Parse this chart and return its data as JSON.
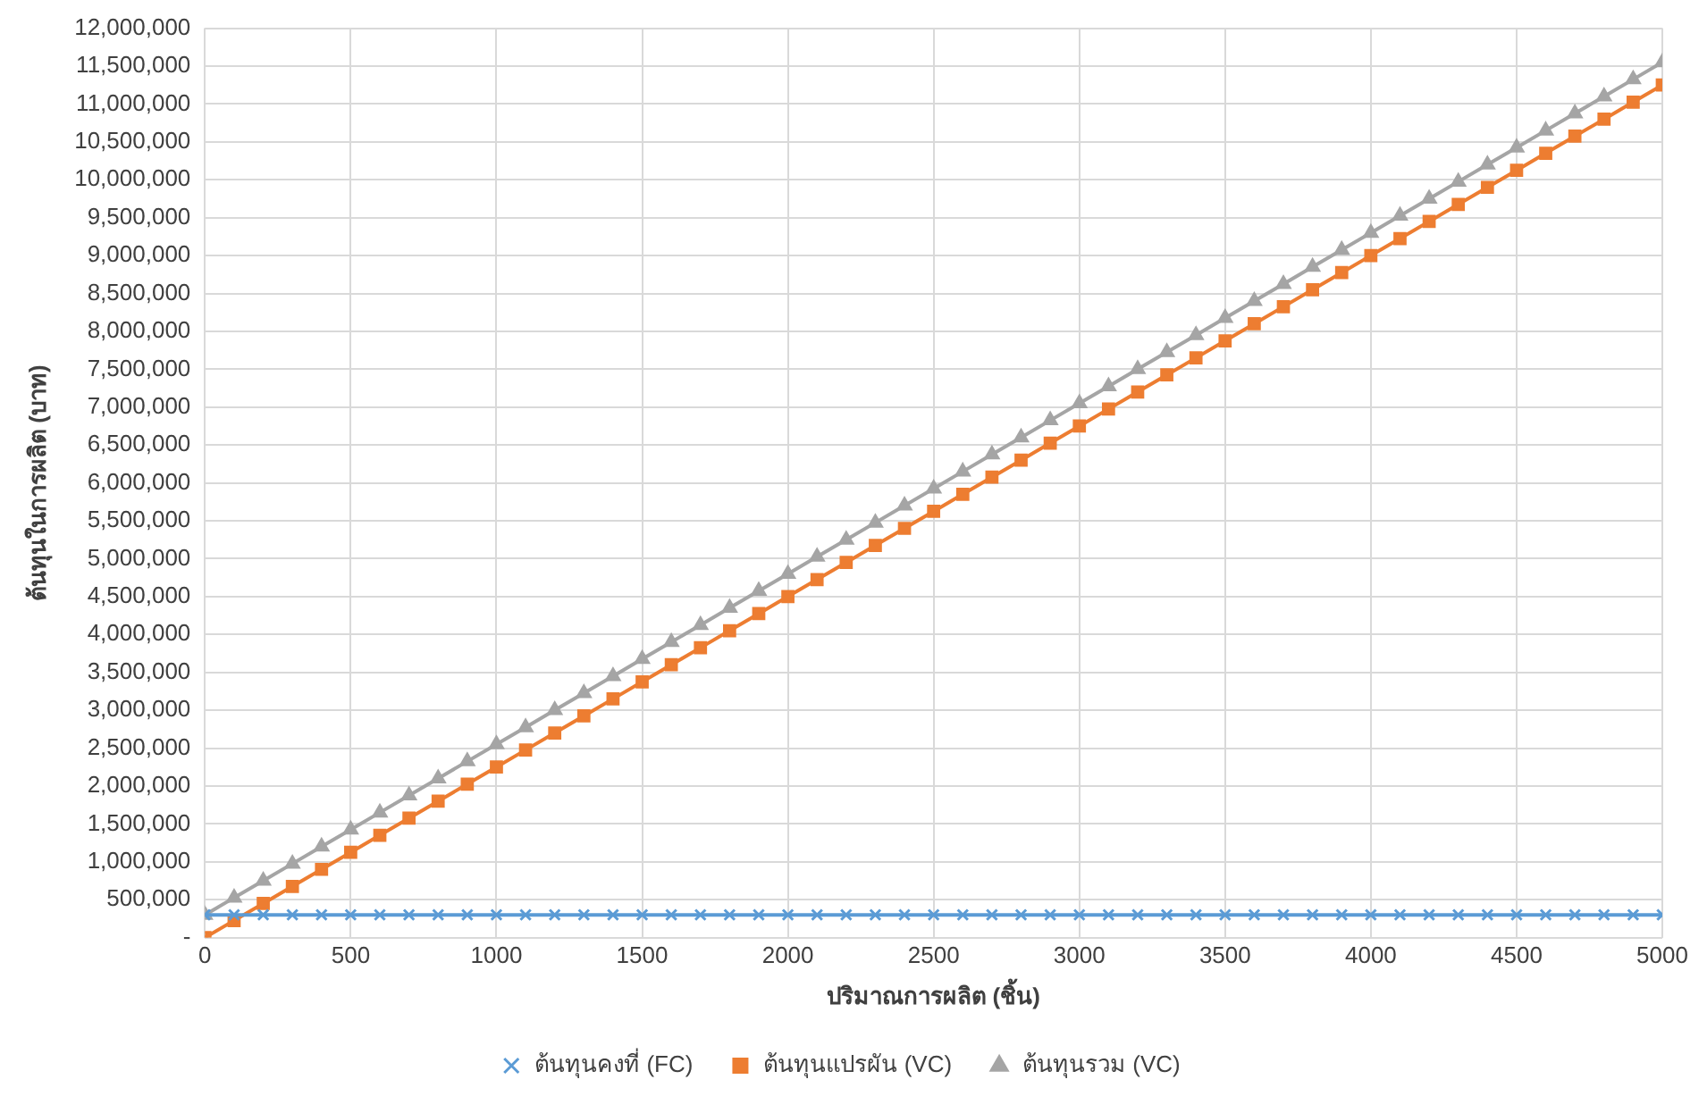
{
  "chart_data": {
    "type": "line",
    "xlabel": "ปริมาณการผลิต (ชิ้น)",
    "ylabel": "ต้นทุนในการผลิต (บาท)",
    "x": [
      0,
      100,
      200,
      300,
      400,
      500,
      600,
      700,
      800,
      900,
      1000,
      1100,
      1200,
      1300,
      1400,
      1500,
      1600,
      1700,
      1800,
      1900,
      2000,
      2100,
      2200,
      2300,
      2400,
      2500,
      2600,
      2700,
      2800,
      2900,
      3000,
      3100,
      3200,
      3300,
      3400,
      3500,
      3600,
      3700,
      3800,
      3900,
      4000,
      4100,
      4200,
      4300,
      4400,
      4500,
      4600,
      4700,
      4800,
      4900,
      5000
    ],
    "series": [
      {
        "name": "ต้นทุนคงที่ (FC)",
        "color": "#5b9bd5",
        "marker": "cross",
        "values": [
          300000,
          300000,
          300000,
          300000,
          300000,
          300000,
          300000,
          300000,
          300000,
          300000,
          300000,
          300000,
          300000,
          300000,
          300000,
          300000,
          300000,
          300000,
          300000,
          300000,
          300000,
          300000,
          300000,
          300000,
          300000,
          300000,
          300000,
          300000,
          300000,
          300000,
          300000,
          300000,
          300000,
          300000,
          300000,
          300000,
          300000,
          300000,
          300000,
          300000,
          300000,
          300000,
          300000,
          300000,
          300000,
          300000,
          300000,
          300000,
          300000,
          300000,
          300000
        ]
      },
      {
        "name": "ต้นทุนแปรผัน (VC)",
        "color": "#ed7d31",
        "marker": "square",
        "values": [
          0,
          225000,
          450000,
          675000,
          900000,
          1125000,
          1350000,
          1575000,
          1800000,
          2025000,
          2250000,
          2475000,
          2700000,
          2925000,
          3150000,
          3375000,
          3600000,
          3825000,
          4050000,
          4275000,
          4500000,
          4725000,
          4950000,
          5175000,
          5400000,
          5625000,
          5850000,
          6075000,
          6300000,
          6525000,
          6750000,
          6975000,
          7200000,
          7425000,
          7650000,
          7875000,
          8100000,
          8325000,
          8550000,
          8775000,
          9000000,
          9225000,
          9450000,
          9675000,
          9900000,
          10125000,
          10350000,
          10575000,
          10800000,
          11025000,
          11250000
        ]
      },
      {
        "name": "ต้นทุนรวม (VC)",
        "color": "#a5a5a5",
        "marker": "triangle",
        "values": [
          300000,
          525000,
          750000,
          975000,
          1200000,
          1425000,
          1650000,
          1875000,
          2100000,
          2325000,
          2550000,
          2775000,
          3000000,
          3225000,
          3450000,
          3675000,
          3900000,
          4125000,
          4350000,
          4575000,
          4800000,
          5025000,
          5250000,
          5475000,
          5700000,
          5925000,
          6150000,
          6375000,
          6600000,
          6825000,
          7050000,
          7275000,
          7500000,
          7725000,
          7950000,
          8175000,
          8400000,
          8625000,
          8850000,
          9075000,
          9300000,
          9525000,
          9750000,
          9975000,
          10200000,
          10425000,
          10650000,
          10875000,
          11100000,
          11325000,
          11550000
        ]
      }
    ],
    "xlim": [
      0,
      5000
    ],
    "xticks": [
      0,
      500,
      1000,
      1500,
      2000,
      2500,
      3000,
      3500,
      4000,
      4500,
      5000
    ],
    "ylim": [
      0,
      12000000
    ],
    "yticks": [
      {
        "value": 0,
        "label": "-"
      },
      {
        "value": 500000,
        "label": "500,000"
      },
      {
        "value": 1000000,
        "label": "1,000,000"
      },
      {
        "value": 1500000,
        "label": "1,500,000"
      },
      {
        "value": 2000000,
        "label": "2,000,000"
      },
      {
        "value": 2500000,
        "label": "2,500,000"
      },
      {
        "value": 3000000,
        "label": "3,000,000"
      },
      {
        "value": 3500000,
        "label": "3,500,000"
      },
      {
        "value": 4000000,
        "label": "4,000,000"
      },
      {
        "value": 4500000,
        "label": "4,500,000"
      },
      {
        "value": 5000000,
        "label": "5,000,000"
      },
      {
        "value": 5500000,
        "label": "5,500,000"
      },
      {
        "value": 6000000,
        "label": "6,000,000"
      },
      {
        "value": 6500000,
        "label": "6,500,000"
      },
      {
        "value": 7000000,
        "label": "7,000,000"
      },
      {
        "value": 7500000,
        "label": "7,500,000"
      },
      {
        "value": 8000000,
        "label": "8,000,000"
      },
      {
        "value": 8500000,
        "label": "8,500,000"
      },
      {
        "value": 9000000,
        "label": "9,000,000"
      },
      {
        "value": 9500000,
        "label": "9,500,000"
      },
      {
        "value": 10000000,
        "label": "10,000,000"
      },
      {
        "value": 10500000,
        "label": "10,500,000"
      },
      {
        "value": 11000000,
        "label": "11,000,000"
      },
      {
        "value": 11500000,
        "label": "11,500,000"
      },
      {
        "value": 12000000,
        "label": "12,000,000"
      }
    ],
    "grid": true,
    "legend": "bottom",
    "line_style": "solid"
  }
}
